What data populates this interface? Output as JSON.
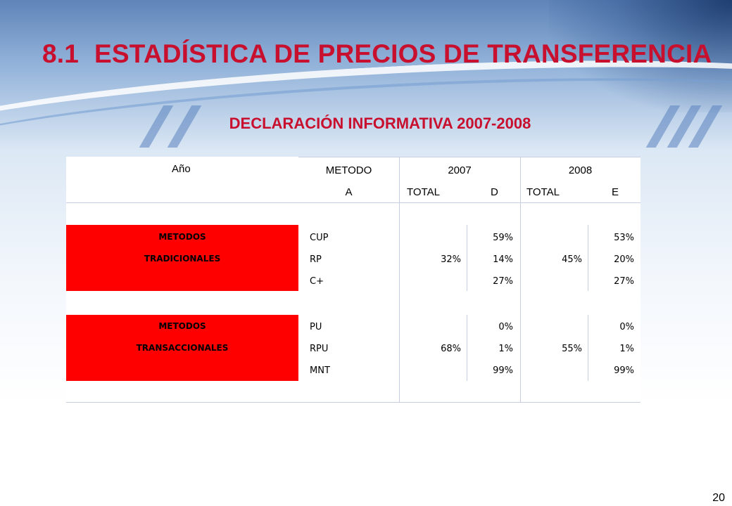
{
  "title": {
    "number": "8.1",
    "text": "ESTADÍSTICA DE PRECIOS DE TRANSFERENCIA"
  },
  "subtitle": "DECLARACIÓN INFORMATIVA 2007-2008",
  "table": {
    "header_row1": {
      "year": "Año",
      "metodo": "METODO",
      "y2007": "2007",
      "y2008": "2008"
    },
    "header_row2": {
      "a": "A",
      "total2007": "TOTAL",
      "d": "D",
      "total2008": "TOTAL",
      "e": "E"
    },
    "groups": [
      {
        "label_line1": "METODOS",
        "label_line2": "TRADICIONALES",
        "total_2007": "32%",
        "total_2008": "45%",
        "rows": [
          {
            "method": "CUP",
            "pct_2007": "59%",
            "pct_2008": "53%"
          },
          {
            "method": "RP",
            "pct_2007": "14%",
            "pct_2008": "20%"
          },
          {
            "method": "C+",
            "pct_2007": "27%",
            "pct_2008": "27%"
          }
        ]
      },
      {
        "label_line1": "METODOS",
        "label_line2": "TRANSACCIONALES",
        "total_2007": "68%",
        "total_2008": "55%",
        "rows": [
          {
            "method": "PU",
            "pct_2007": "0%",
            "pct_2008": "0%"
          },
          {
            "method": "RPU",
            "pct_2007": "1%",
            "pct_2008": "1%"
          },
          {
            "method": "MNT",
            "pct_2007": "99%",
            "pct_2008": "99%"
          }
        ]
      }
    ]
  },
  "page_number": "20",
  "colors": {
    "title_red": "#c8102e",
    "group_red": "#ff0000"
  }
}
